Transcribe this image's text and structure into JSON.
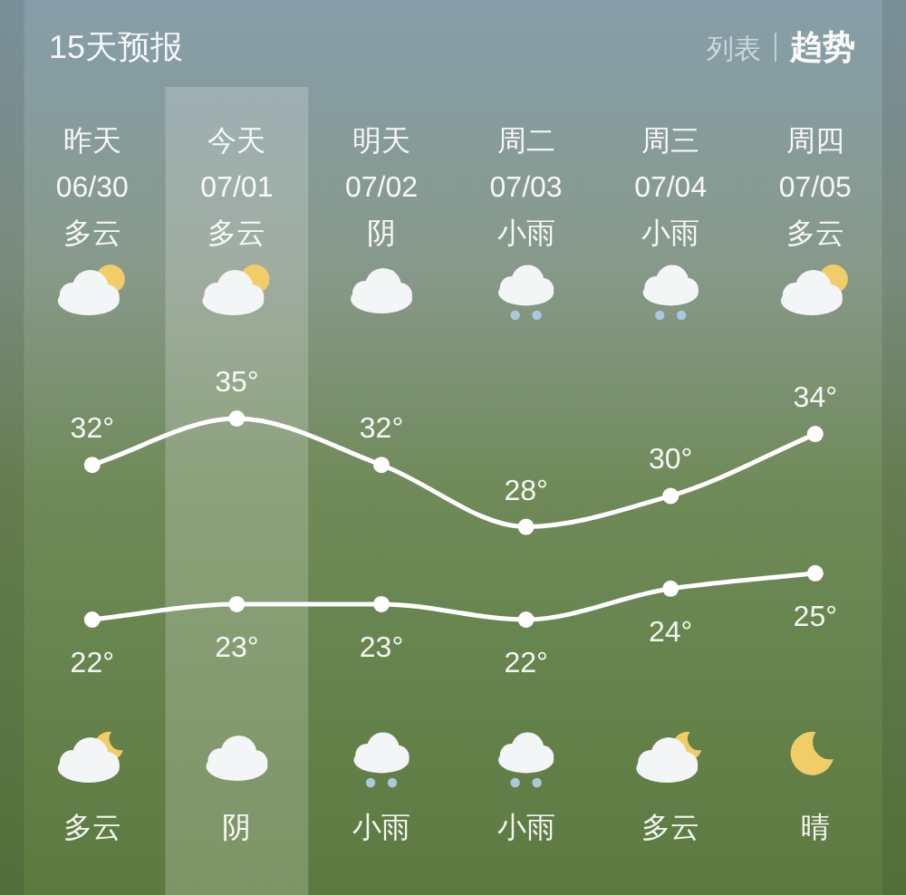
{
  "chart_data": {
    "type": "line",
    "title": "15天预报",
    "categories": [
      "昨天\n06/30\n多云",
      "今天\n07/01\n多云",
      "明天\n07/02\n阴",
      "周二\n07/03\n小雨",
      "周三\n07/04\n小雨",
      "周四\n07/05\n多云"
    ],
    "series": [
      {
        "color": "#ffffff",
        "values": [
          32,
          35,
          32,
          28,
          30,
          34
        ],
        "value_labels": [
          "32°",
          "35°",
          "32°",
          "28°",
          "30°",
          "34°"
        ]
      },
      {
        "color": "#ffffff",
        "values": [
          22,
          23,
          23,
          22,
          24,
          25
        ],
        "value_labels": [
          "22°",
          "23°",
          "23°",
          "22°",
          "24°",
          "25°"
        ]
      }
    ],
    "marker": "circle",
    "line_style": "solid",
    "bands": [
      {
        "axis": "x",
        "from": "今天\n07/01\n多云",
        "to": "今天\n07/01\n多云",
        "color": "#ffffff"
      }
    ],
    "annotations": [
      "列表",
      "趋势",
      "多云",
      "阴",
      "小雨",
      "小雨",
      "多云",
      "晴"
    ]
  }
}
